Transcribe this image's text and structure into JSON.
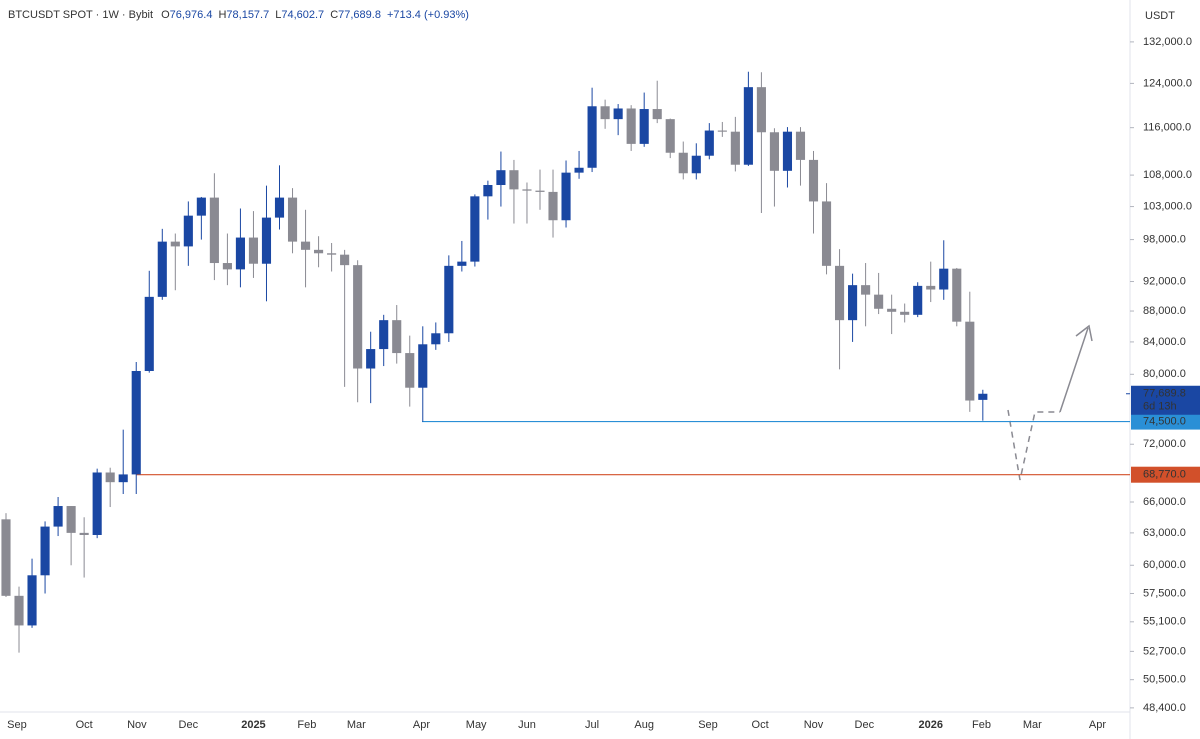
{
  "header": {
    "symbol": "BTCUSDT SPOT · 1W · Bybit",
    "fields": [
      {
        "key": "O",
        "value": "76,976.4"
      },
      {
        "key": "H",
        "value": "78,157.7"
      },
      {
        "key": "L",
        "value": "74,602.7"
      },
      {
        "key": "C",
        "value": "77,689.8"
      }
    ],
    "change": "+713.4 (+0.93%)"
  },
  "chart_data": {
    "type": "candlestick",
    "currency": "USDT",
    "log_scale": true,
    "up_color": "#1a47a3",
    "down_color": "#8a8a92",
    "open": [
      64300,
      57300,
      54800,
      59100,
      63600,
      65600,
      63000,
      62800,
      69000,
      68000,
      68800,
      80400,
      89900,
      97700,
      97000,
      101600,
      104400,
      94600,
      93700,
      98300,
      94500,
      101300,
      104400,
      97700,
      96500,
      96000,
      95800,
      94300,
      80700,
      83100,
      86800,
      82600,
      78400,
      83700,
      85100,
      94200,
      94800,
      104600,
      106400,
      108800,
      105700,
      105500,
      105300,
      100900,
      108400,
      109200,
      119800,
      117500,
      119400,
      113200,
      119300,
      117500,
      111700,
      108300,
      111200,
      115500,
      115300,
      109700,
      123300,
      115200,
      108700,
      115300,
      110500,
      103800,
      94200,
      86800,
      91500,
      90200,
      88300,
      87900,
      87500,
      91400,
      90900,
      93800,
      86600,
      76976.4
    ],
    "high": [
      64900,
      58100,
      60600,
      64100,
      66500,
      65600,
      64500,
      69400,
      69500,
      73600,
      81500,
      93500,
      99600,
      98900,
      103800,
      104500,
      108300,
      98900,
      102700,
      102300,
      106300,
      109600,
      105900,
      102500,
      98500,
      97500,
      96500,
      95000,
      85300,
      87500,
      88800,
      84800,
      86000,
      86500,
      95700,
      97800,
      104900,
      107100,
      111900,
      110500,
      106800,
      108900,
      108900,
      110400,
      112000,
      123200,
      121000,
      120200,
      120000,
      122300,
      124500,
      117600,
      113600,
      113300,
      116800,
      117000,
      117900,
      126200,
      126100,
      115900,
      116100,
      116100,
      112000,
      106700,
      96600,
      93100,
      94600,
      93200,
      90200,
      89000,
      91900,
      94800,
      97900,
      93900,
      90600,
      78157.7
    ],
    "low": [
      57200,
      52600,
      54600,
      57500,
      62700,
      60000,
      58900,
      62500,
      65500,
      66800,
      66800,
      80200,
      89500,
      90800,
      94200,
      98000,
      92200,
      91500,
      91200,
      92500,
      89300,
      99500,
      96000,
      91200,
      94000,
      93400,
      78500,
      76700,
      76600,
      81000,
      81300,
      76200,
      74500,
      83000,
      84000,
      93400,
      94100,
      101000,
      103000,
      100400,
      100400,
      102500,
      98300,
      99800,
      107400,
      108500,
      115800,
      114700,
      112000,
      112700,
      116800,
      110800,
      107300,
      107300,
      110600,
      114400,
      108600,
      109500,
      102000,
      103000,
      106000,
      106300,
      98900,
      93000,
      80600,
      84000,
      86000,
      87600,
      85000,
      86500,
      87200,
      89200,
      89500,
      86000,
      75600,
      74602.7
    ],
    "close": [
      57300,
      54800,
      59100,
      63600,
      65600,
      63000,
      62800,
      69000,
      68000,
      68800,
      80400,
      89900,
      97700,
      97000,
      101600,
      104400,
      94600,
      93700,
      98300,
      94500,
      101300,
      104400,
      97700,
      96500,
      96000,
      95800,
      94300,
      80700,
      83100,
      86800,
      82600,
      78400,
      83700,
      85100,
      94200,
      94800,
      104600,
      106400,
      108800,
      105700,
      105500,
      105300,
      100900,
      108400,
      109200,
      119800,
      117500,
      119400,
      113200,
      119300,
      117500,
      111700,
      108300,
      111200,
      115500,
      115300,
      109700,
      123300,
      115200,
      108700,
      115300,
      110500,
      103800,
      94200,
      86800,
      91500,
      90200,
      88300,
      87900,
      87500,
      91400,
      90900,
      93800,
      86600,
      76900,
      77689.8
    ],
    "xlim": [
      -0.46,
      86.3
    ],
    "xticks": [
      {
        "value": 0.84,
        "label": "Sep"
      },
      {
        "value": 6.0,
        "label": "Oct"
      },
      {
        "value": 10.05,
        "label": "Nov"
      },
      {
        "value": 14.0,
        "label": "Dec"
      },
      {
        "value": 19.0,
        "label": "2025"
      },
      {
        "value": 23.1,
        "label": "Feb"
      },
      {
        "value": 26.9,
        "label": "Mar"
      },
      {
        "value": 31.9,
        "label": "Apr"
      },
      {
        "value": 36.1,
        "label": "May"
      },
      {
        "value": 40.0,
        "label": "Jun"
      },
      {
        "value": 45.0,
        "label": "Jul"
      },
      {
        "value": 49.0,
        "label": "Aug"
      },
      {
        "value": 53.9,
        "label": "Sep"
      },
      {
        "value": 57.9,
        "label": "Oct"
      },
      {
        "value": 62.0,
        "label": "Nov"
      },
      {
        "value": 65.9,
        "label": "Dec"
      },
      {
        "value": 71.0,
        "label": "2026"
      },
      {
        "value": 74.9,
        "label": "Feb"
      },
      {
        "value": 78.8,
        "label": "Mar"
      },
      {
        "value": 83.8,
        "label": "Apr"
      }
    ],
    "ylim": [
      48100,
      140600
    ],
    "yticks": [
      {
        "value": 132000,
        "label": "132,000.0"
      },
      {
        "value": 124000,
        "label": "124,000.0"
      },
      {
        "value": 116000,
        "label": "116,000.0"
      },
      {
        "value": 108000,
        "label": "108,000.0"
      },
      {
        "value": 103000,
        "label": "103,000.0"
      },
      {
        "value": 98000,
        "label": "98,000.0"
      },
      {
        "value": 92000,
        "label": "92,000.0"
      },
      {
        "value": 88000,
        "label": "88,000.0"
      },
      {
        "value": 84000,
        "label": "84,000.0"
      },
      {
        "value": 80000,
        "label": "80,000.0"
      },
      {
        "value": 72000,
        "label": "72,000.0"
      },
      {
        "value": 66000,
        "label": "66,000.0"
      },
      {
        "value": 63000,
        "label": "63,000.0"
      },
      {
        "value": 60000,
        "label": "60,000.0"
      },
      {
        "value": 57500,
        "label": "57,500.0"
      },
      {
        "value": 55100,
        "label": "55,100.0"
      },
      {
        "value": 52700,
        "label": "52,700.0"
      },
      {
        "value": 50500,
        "label": "50,500.0"
      },
      {
        "value": 48400,
        "label": "48,400.0"
      }
    ],
    "last_price": {
      "value": 77689.8,
      "label": "77,689.8",
      "countdown": "6d 13h",
      "color": "#1a47a3"
    },
    "levels": [
      {
        "value": 74500,
        "label": "74,500.0",
        "color": "#2a8fd6"
      },
      {
        "value": 68770,
        "label": "68,770.0",
        "color": "#d2502a"
      }
    ]
  }
}
